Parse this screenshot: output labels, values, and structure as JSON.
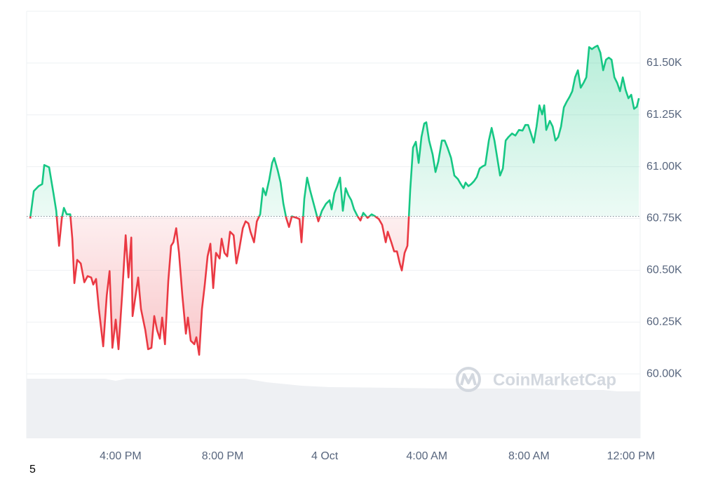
{
  "chart_data": {
    "type": "line",
    "x": [
      -11.54,
      -11.4,
      -11.21,
      -11.07,
      -10.99,
      -10.8,
      -10.63,
      -10.52,
      -10.41,
      -10.3,
      -10.22,
      -10.11,
      -9.97,
      -9.89,
      -9.81,
      -9.7,
      -9.56,
      -9.42,
      -9.29,
      -9.15,
      -9.07,
      -8.96,
      -8.85,
      -8.68,
      -8.54,
      -8.43,
      -8.32,
      -8.19,
      -8.08,
      -7.94,
      -7.8,
      -7.69,
      -7.58,
      -7.53,
      -7.39,
      -7.31,
      -7.2,
      -7.03,
      -6.92,
      -6.79,
      -6.68,
      -6.57,
      -6.46,
      -6.37,
      -6.26,
      -6.13,
      -6.02,
      -5.93,
      -5.82,
      -5.71,
      -5.58,
      -5.44,
      -5.36,
      -5.25,
      -5.11,
      -5.03,
      -4.92,
      -4.81,
      -4.7,
      -4.59,
      -4.48,
      -4.37,
      -4.26,
      -4.12,
      -4.04,
      -3.93,
      -3.82,
      -3.71,
      -3.57,
      -3.46,
      -3.35,
      -3.21,
      -3.1,
      -2.99,
      -2.91,
      -2.77,
      -2.66,
      -2.53,
      -2.42,
      -2.31,
      -2.17,
      -2.06,
      -1.98,
      -1.84,
      -1.73,
      -1.62,
      -1.51,
      -1.4,
      -1.29,
      -1.1,
      -0.99,
      -0.91,
      -0.8,
      -0.69,
      -0.58,
      -0.47,
      -0.36,
      -0.25,
      -0.11,
      0.05,
      0.19,
      0.27,
      0.38,
      0.49,
      0.6,
      0.71,
      0.82,
      0.93,
      1.04,
      1.15,
      1.29,
      1.4,
      1.51,
      1.68,
      1.84,
      1.98,
      2.12,
      2.25,
      2.39,
      2.47,
      2.61,
      2.72,
      2.83,
      2.94,
      3.02,
      3.13,
      3.24,
      3.35,
      3.46,
      3.57,
      3.68,
      3.79,
      3.9,
      3.98,
      4.09,
      4.23,
      4.34,
      4.45,
      4.59,
      4.7,
      4.81,
      4.95,
      5.08,
      5.22,
      5.33,
      5.44,
      5.52,
      5.63,
      5.74,
      5.85,
      5.96,
      6.07,
      6.18,
      6.29,
      6.43,
      6.54,
      6.65,
      6.76,
      6.87,
      6.98,
      7.09,
      7.2,
      7.34,
      7.47,
      7.61,
      7.75,
      7.86,
      7.97,
      8.08,
      8.19,
      8.3,
      8.41,
      8.52,
      8.6,
      8.68,
      8.82,
      8.93,
      9.04,
      9.15,
      9.26,
      9.37,
      9.48,
      9.59,
      9.7,
      9.81,
      9.92,
      10.03,
      10.14,
      10.25,
      10.36,
      10.47,
      10.58,
      10.69,
      10.8,
      10.91,
      11.02,
      11.13,
      11.24,
      11.35,
      11.46,
      11.57,
      11.68,
      11.79,
      11.9,
      12.01,
      12.12,
      12.23,
      12.31
    ],
    "values": [
      60750,
      60882,
      60906,
      60916,
      61008,
      60997,
      60872,
      60787,
      60618,
      60753,
      60801,
      60770,
      60770,
      60652,
      60438,
      60550,
      60533,
      60442,
      60472,
      60465,
      60431,
      60458,
      60313,
      60133,
      60380,
      60496,
      60126,
      60262,
      60119,
      60380,
      60669,
      60465,
      60658,
      60279,
      60397,
      60465,
      60313,
      60211,
      60119,
      60126,
      60279,
      60211,
      60170,
      60272,
      60143,
      60448,
      60618,
      60635,
      60703,
      60584,
      60380,
      60194,
      60272,
      60160,
      60143,
      60177,
      60092,
      60313,
      60431,
      60567,
      60628,
      60414,
      60584,
      60557,
      60652,
      60584,
      60567,
      60686,
      60669,
      60533,
      60601,
      60703,
      60736,
      60726,
      60686,
      60635,
      60736,
      60770,
      60896,
      60862,
      60940,
      61018,
      61042,
      60981,
      60923,
      60821,
      60753,
      60709,
      60760,
      60753,
      60747,
      60635,
      60845,
      60947,
      60889,
      60838,
      60787,
      60736,
      60787,
      60821,
      60838,
      60794,
      60872,
      60906,
      60947,
      60787,
      60896,
      60862,
      60838,
      60794,
      60760,
      60740,
      60777,
      60753,
      60770,
      60760,
      60747,
      60719,
      60635,
      60686,
      60635,
      60591,
      60591,
      60533,
      60499,
      60584,
      60618,
      60889,
      61092,
      61120,
      61018,
      61143,
      61208,
      61214,
      61126,
      61058,
      60974,
      61025,
      61126,
      61126,
      61092,
      61042,
      60957,
      60940,
      60916,
      60896,
      60923,
      60906,
      60916,
      60930,
      60950,
      60991,
      61001,
      61008,
      61126,
      61187,
      61126,
      61042,
      60957,
      60991,
      61126,
      61143,
      61160,
      61150,
      61177,
      61174,
      61201,
      61201,
      61160,
      61116,
      61194,
      61296,
      61252,
      61296,
      61177,
      61221,
      61194,
      61126,
      61143,
      61194,
      61286,
      61313,
      61336,
      61364,
      61431,
      61465,
      61381,
      61404,
      61431,
      61577,
      61567,
      61577,
      61584,
      61550,
      61465,
      61516,
      61526,
      61516,
      61431,
      61404,
      61364,
      61431,
      61370,
      61330,
      61347,
      61279,
      61289,
      61330
    ],
    "baseline": 60760,
    "up_color": "#16c784",
    "down_color": "#ea3943",
    "xlim": [
      -11.68,
      12.36
    ],
    "xticks": [
      {
        "value": -8,
        "label": "4:00 PM"
      },
      {
        "value": -4,
        "label": "8:00 PM"
      },
      {
        "value": 0,
        "label": "4 Oct"
      },
      {
        "value": 4,
        "label": "4:00 AM"
      },
      {
        "value": 8,
        "label": "8:00 AM"
      },
      {
        "value": 12,
        "label": "12:00 PM"
      }
    ],
    "ylim": [
      59750,
      61750
    ],
    "yticks": [
      {
        "value": 60000,
        "label": "60.00K"
      },
      {
        "value": 60250,
        "label": "60.25K"
      },
      {
        "value": 60500,
        "label": "60.50K"
      },
      {
        "value": 60750,
        "label": "60.75K"
      },
      {
        "value": 61000,
        "label": "61.00K"
      },
      {
        "value": 61250,
        "label": "61.25K"
      },
      {
        "value": 61500,
        "label": "61.50K"
      }
    ],
    "grid": true,
    "watermark": "CoinMarketCap",
    "footnote": "5"
  }
}
